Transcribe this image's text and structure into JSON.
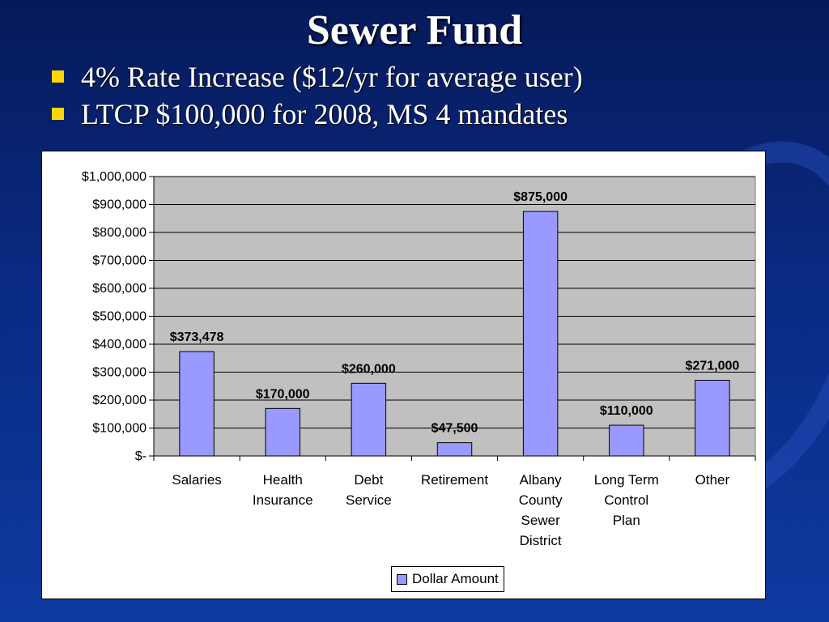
{
  "slide": {
    "title": "Sewer Fund",
    "bullets": [
      "4% Rate Increase ($12/yr for average user)",
      "LTCP $100,000 for 2008, MS 4 mandates"
    ]
  },
  "colors": {
    "bar_fill": "#9999ff",
    "plot_background": "#c0c0c0",
    "bullet": "#ffd700"
  },
  "chart_data": {
    "type": "bar",
    "categories": [
      [
        "Salaries"
      ],
      [
        "Health",
        "Insurance"
      ],
      [
        "Debt",
        "Service"
      ],
      [
        "Retirement"
      ],
      [
        "Albany",
        "County",
        "Sewer",
        "District"
      ],
      [
        "Long Term",
        "Control",
        "Plan"
      ],
      [
        "Other"
      ]
    ],
    "series": [
      {
        "name": "Dollar Amount",
        "values": [
          373478,
          170000,
          260000,
          47500,
          875000,
          110000,
          271000
        ],
        "labels": [
          "$373,478",
          "$170,000",
          "$260,000",
          "$47,500",
          "$875,000",
          "$110,000",
          "$271,000"
        ]
      }
    ],
    "ylim": [
      0,
      1000000
    ],
    "y_ticks": [
      0,
      100000,
      200000,
      300000,
      400000,
      500000,
      600000,
      700000,
      800000,
      900000,
      1000000
    ],
    "y_tick_labels": [
      "$-",
      "$100,000",
      "$200,000",
      "$300,000",
      "$400,000",
      "$500,000",
      "$600,000",
      "$700,000",
      "$800,000",
      "$900,000",
      "$1,000,000"
    ],
    "grid": true,
    "legend": "bottom"
  }
}
